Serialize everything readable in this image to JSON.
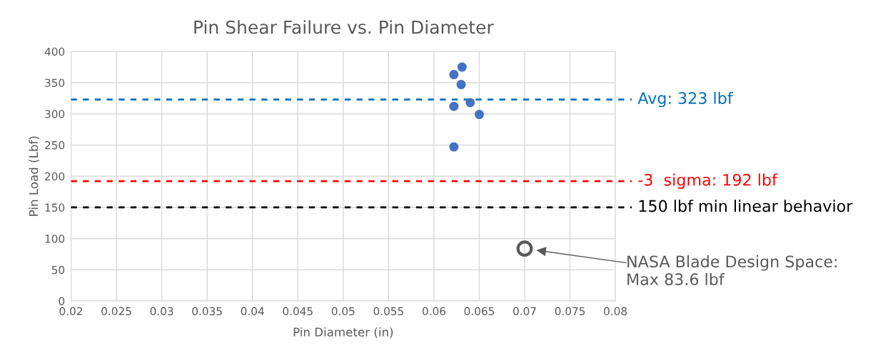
{
  "chart_data": {
    "type": "scatter",
    "title": "Pin Shear Failure vs. Pin Diameter",
    "xlabel": "Pin Diameter (in)",
    "ylabel": "Pin Load (Lbf)",
    "series": [
      {
        "color": "#4472c4",
        "x": [
          0.0622,
          0.0631,
          0.063,
          0.0622,
          0.064,
          0.065,
          0.0622
        ],
        "values": [
          363,
          375,
          347,
          312,
          318,
          299,
          247
        ]
      },
      {
        "color": "#595959",
        "x": [
          0.07
        ],
        "values": [
          84
        ],
        "marker": "circle"
      }
    ],
    "xlim": [
      0.02,
      0.08
    ],
    "xticks": [
      0.02,
      0.025,
      0.03,
      0.035,
      0.04,
      0.045,
      0.05,
      0.055,
      0.06,
      0.065,
      0.07,
      0.075,
      0.08
    ],
    "ylim": [
      0,
      400
    ],
    "yticks": [
      0,
      50,
      100,
      150,
      200,
      250,
      300,
      350,
      400
    ],
    "ref_lines": [
      {
        "axis": "y",
        "value": 323,
        "label": "Avg: 323 lbf",
        "color": "#0070c0",
        "line_style": "dashed"
      },
      {
        "axis": "y",
        "value": 192,
        "label": "-3  sigma: 192 lbf",
        "color": "#ff0000",
        "line_style": "dashed"
      },
      {
        "axis": "y",
        "value": 150,
        "label": "150 lbf min linear behavior",
        "color": "#000000",
        "line_style": "dashed"
      }
    ],
    "annotations": [
      "NASA Blade Design Space:\nMax 83.6 lbf"
    ],
    "grid": true
  }
}
